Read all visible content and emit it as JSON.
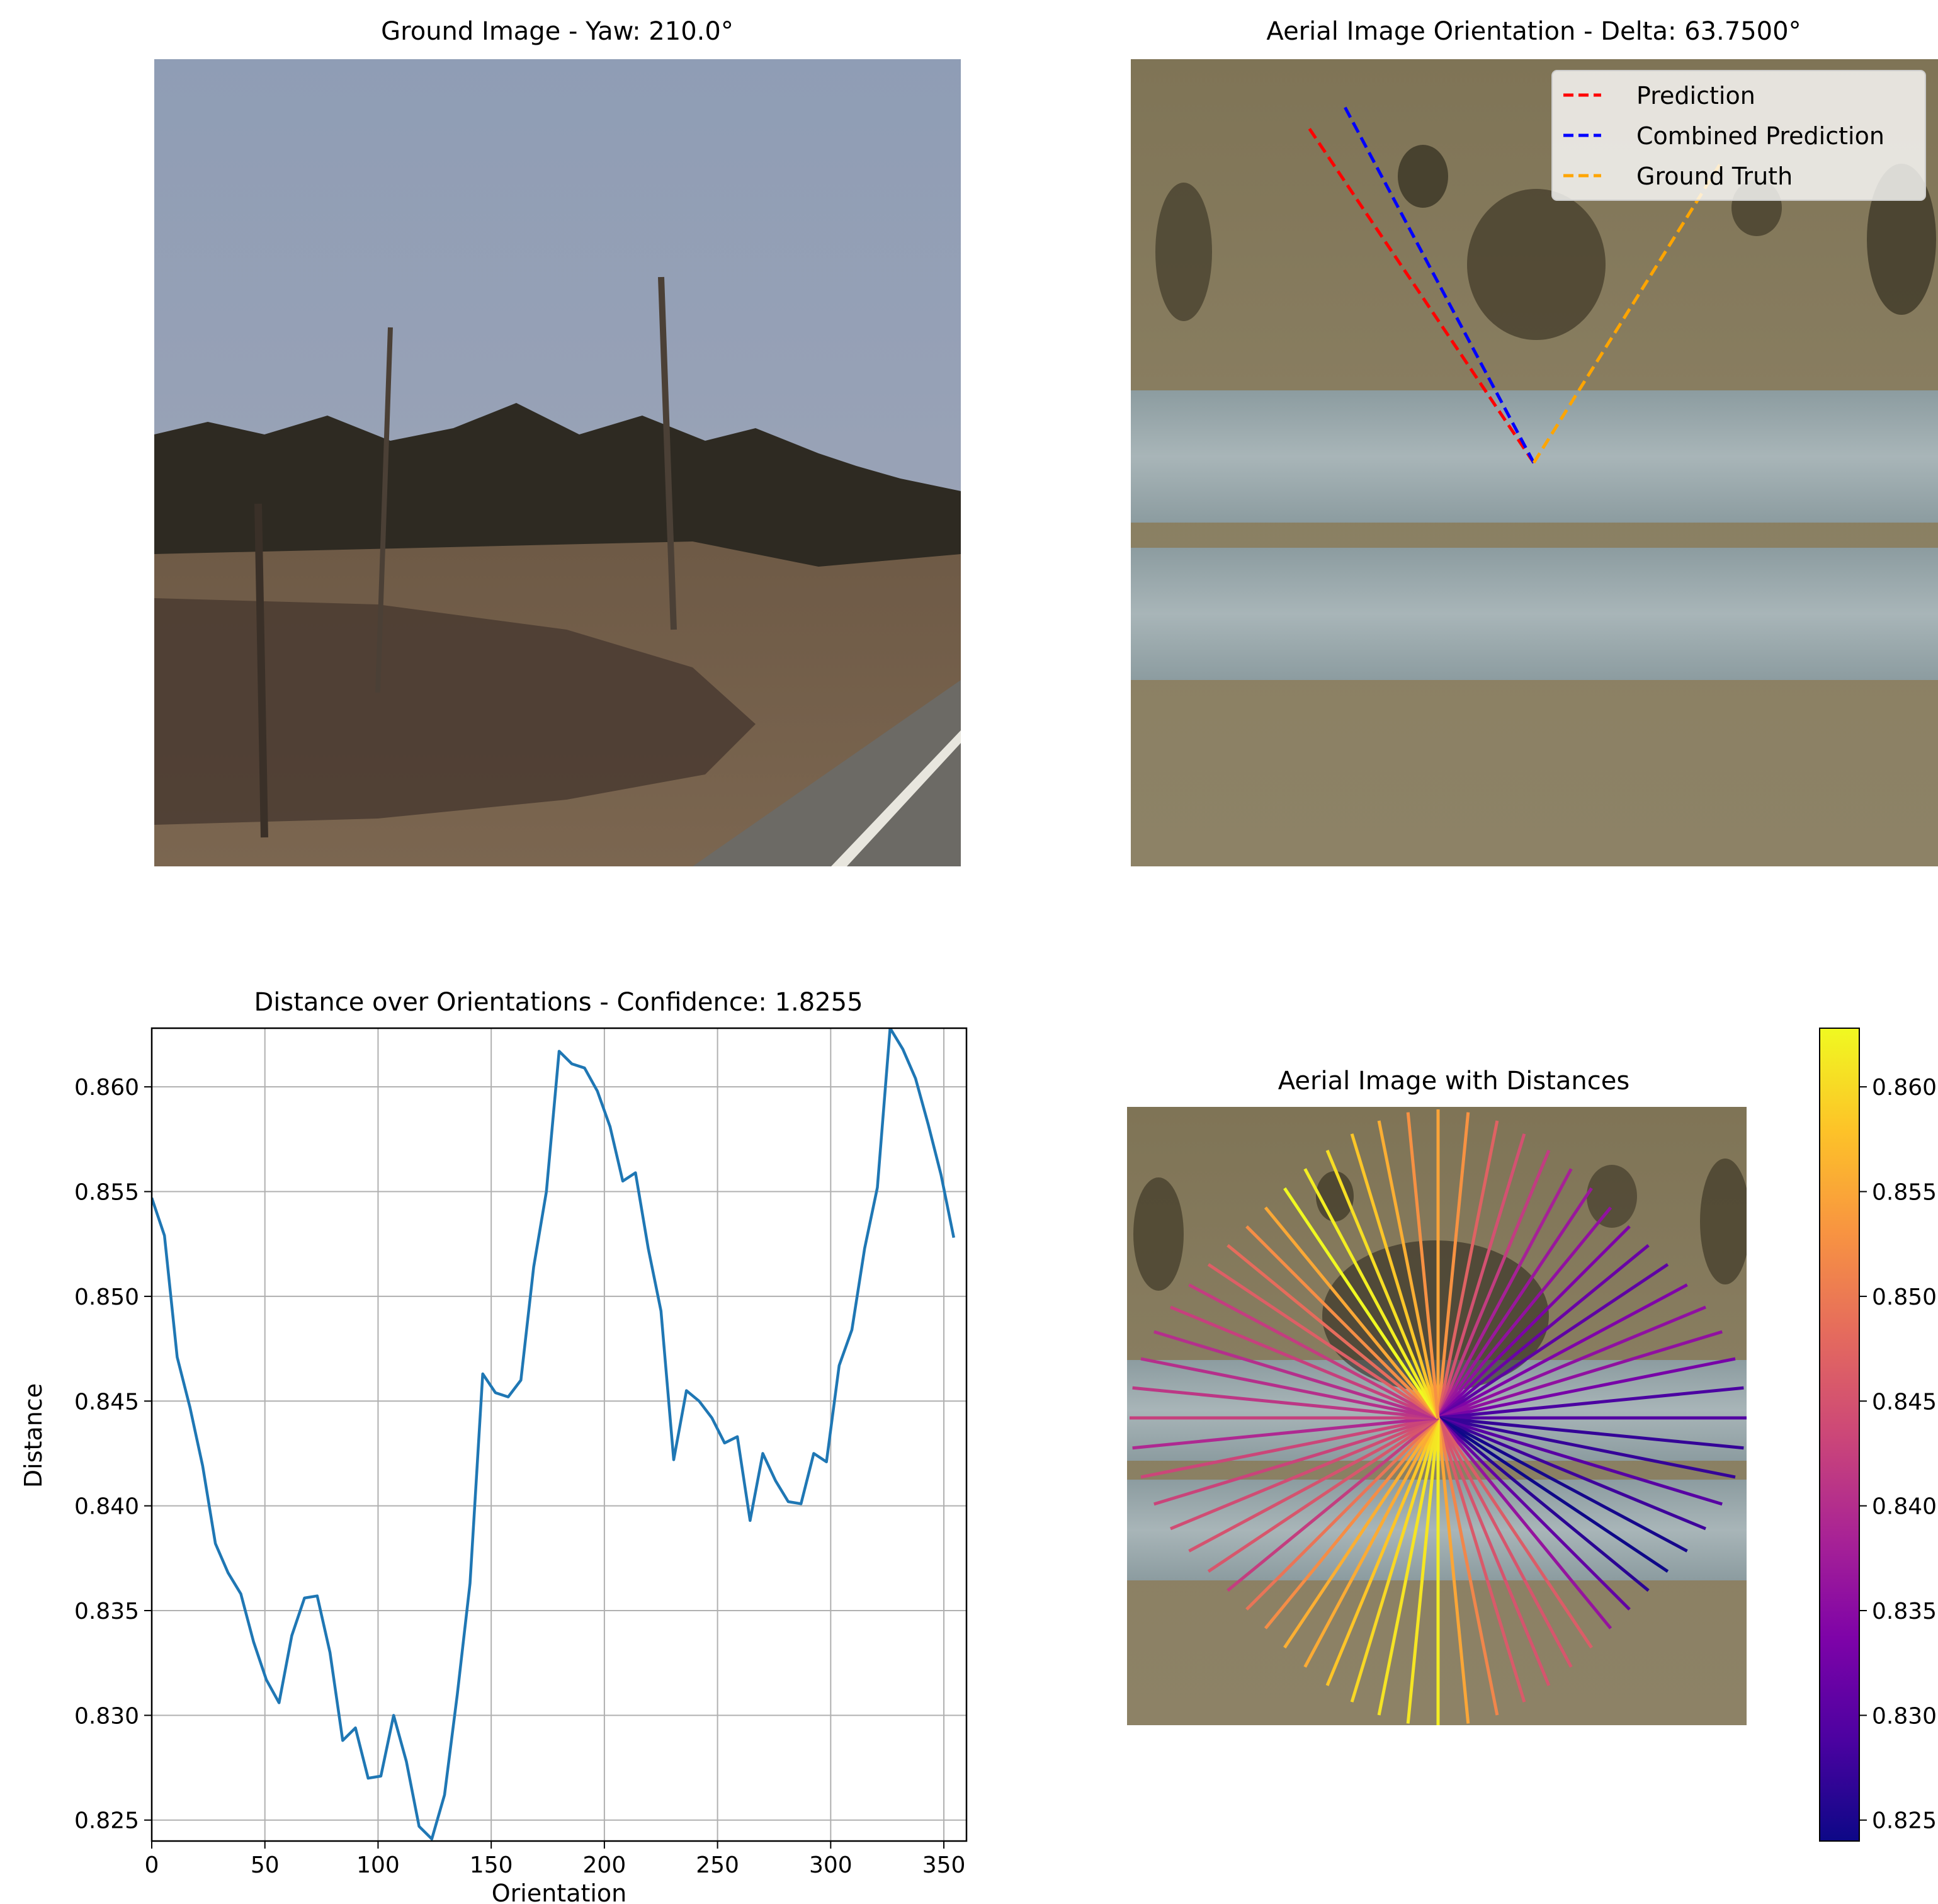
{
  "figure": {
    "panel1": {
      "title": "Ground Image - Yaw: 210.0°",
      "image": "ground-level road and trees photo"
    },
    "panel2": {
      "title": "Aerial Image Orientation - Delta: 63.7500°",
      "image": "aerial highway photo",
      "legend": [
        "Prediction",
        "Combined Prediction",
        "Ground Truth"
      ],
      "colors": {
        "prediction": "#ff0000",
        "combined": "#0000ff",
        "ground_truth": "#ffa500"
      }
    },
    "panel3": {
      "title": "Distance over Orientations - Confidence: 1.8255",
      "xlabel": "Orientation",
      "ylabel": "Distance",
      "xticks": [
        "0",
        "50",
        "100",
        "150",
        "200",
        "250",
        "300",
        "350"
      ],
      "yticks": [
        "0.825",
        "0.830",
        "0.835",
        "0.840",
        "0.845",
        "0.850",
        "0.855",
        "0.860"
      ],
      "line_color": "#1f77b4"
    },
    "panel4": {
      "title": "Aerial Image with Distances",
      "colorbar_ticks": [
        "0.825",
        "0.830",
        "0.835",
        "0.840",
        "0.845",
        "0.850",
        "0.855",
        "0.860"
      ],
      "colormap": "plasma"
    }
  },
  "chart_data": [
    {
      "type": "line",
      "title": "Distance over Orientations - Confidence: 1.8255",
      "xlabel": "Orientation",
      "ylabel": "Distance",
      "xlim": [
        0,
        360
      ],
      "ylim": [
        0.824,
        0.8628
      ],
      "grid": true,
      "x": [
        0,
        5.625,
        11.25,
        16.875,
        22.5,
        28.125,
        33.75,
        39.375,
        45,
        50.625,
        56.25,
        61.875,
        67.5,
        73.125,
        78.75,
        84.375,
        90,
        95.625,
        101.25,
        106.875,
        112.5,
        118.125,
        123.75,
        129.375,
        135,
        140.625,
        146.25,
        151.875,
        157.5,
        163.125,
        168.75,
        174.375,
        180,
        185.625,
        191.25,
        196.875,
        202.5,
        208.125,
        213.75,
        219.375,
        225,
        230.625,
        236.25,
        241.875,
        247.5,
        253.125,
        258.75,
        264.375,
        270,
        275.625,
        281.25,
        286.875,
        292.5,
        298.125,
        303.75,
        309.375,
        315,
        320.625,
        326.25,
        331.875,
        337.5,
        343.125,
        348.75,
        354.375
      ],
      "y": [
        0.8547,
        0.8529,
        0.8471,
        0.8447,
        0.8419,
        0.8382,
        0.8368,
        0.8358,
        0.8335,
        0.8317,
        0.8306,
        0.8338,
        0.8356,
        0.8357,
        0.833,
        0.8288,
        0.8294,
        0.827,
        0.8271,
        0.83,
        0.8278,
        0.8247,
        0.8241,
        0.8262,
        0.831,
        0.8363,
        0.8463,
        0.8454,
        0.8452,
        0.846,
        0.8514,
        0.855,
        0.8617,
        0.8611,
        0.8609,
        0.8598,
        0.8581,
        0.8555,
        0.8559,
        0.8523,
        0.8493,
        0.8422,
        0.8455,
        0.845,
        0.8442,
        0.843,
        0.8433,
        0.8393,
        0.8425,
        0.8412,
        0.8402,
        0.8401,
        0.8425,
        0.8421,
        0.8467,
        0.8484,
        0.8523,
        0.8552,
        0.8628,
        0.8618,
        0.8604,
        0.8582,
        0.8558,
        0.8528
      ]
    },
    {
      "type": "other",
      "title": "Aerial Image Orientation - Delta: 63.7500°",
      "series": [
        {
          "name": "Prediction",
          "angle_deg": 330
        },
        {
          "name": "Combined Prediction",
          "angle_deg": 326.25
        },
        {
          "name": "Ground Truth",
          "angle_deg": 30
        }
      ]
    },
    {
      "type": "other",
      "title": "Aerial Image with Distances",
      "colorbar": {
        "min": 0.824,
        "max": 0.8628,
        "cmap": "plasma",
        "ticks": [
          0.825,
          0.83,
          0.835,
          0.84,
          0.845,
          0.85,
          0.855,
          0.86
        ]
      }
    }
  ]
}
